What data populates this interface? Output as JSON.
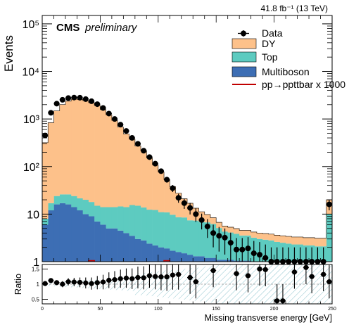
{
  "lumi_label": "41.8 fb⁻¹ (13 TeV)",
  "experiment": "CMS",
  "status": "preliminary",
  "chart_data": [
    {
      "type": "bar",
      "stacked": true,
      "histogram": true,
      "log_y": true,
      "ylabel": "Events",
      "xlim": [
        0,
        250
      ],
      "ylim": [
        1,
        150000
      ],
      "y_tick_labels": [
        "1",
        "10",
        "10²",
        "10³",
        "10⁴",
        "10⁵"
      ],
      "legend_position": "top-right",
      "bin_width": 5,
      "bin_low_edges": [
        0,
        5,
        10,
        15,
        20,
        25,
        30,
        35,
        40,
        45,
        50,
        55,
        60,
        65,
        70,
        75,
        80,
        85,
        90,
        95,
        100,
        105,
        110,
        115,
        120,
        125,
        130,
        135,
        140,
        145,
        150,
        155,
        160,
        165,
        170,
        175,
        180,
        185,
        190,
        195,
        200,
        205,
        210,
        215,
        220,
        225,
        230,
        235,
        240,
        245
      ],
      "series": [
        {
          "name": "Multiboson",
          "color": "#3d6eb4",
          "values": [
            6,
            12,
            16,
            17,
            16,
            14,
            12,
            10,
            9,
            7,
            6,
            5,
            5,
            4.5,
            4,
            3.5,
            3,
            2.8,
            2.4,
            2.2,
            2,
            1.9,
            1.7,
            1.6,
            1.5,
            1.4,
            1.3,
            1.3,
            1.2,
            1.2,
            1.1,
            1.1,
            1.1,
            1.05,
            1.05,
            1.05,
            1,
            1,
            1,
            1,
            1,
            1,
            1,
            1,
            1,
            1,
            1,
            1,
            1,
            1
          ]
        },
        {
          "name": "Top",
          "color": "#5dcbc0",
          "values": [
            2,
            5,
            8,
            9,
            10,
            10,
            9.5,
            10,
            9,
            8,
            8,
            9,
            9,
            10,
            10,
            12,
            12,
            11,
            10,
            10,
            9,
            9,
            8,
            7,
            7,
            6,
            6,
            5.5,
            5.5,
            5,
            4,
            3.2,
            3,
            2.8,
            2.5,
            2.5,
            2.2,
            2,
            1.9,
            1.8,
            1.6,
            1.5,
            1.4,
            1.3,
            1.3,
            1.2,
            1.2,
            1.1,
            1.1,
            9
          ]
        },
        {
          "name": "DY",
          "color": "#fdc18a",
          "values": [
            310,
            820,
            1460,
            1980,
            2350,
            2580,
            2560,
            2400,
            2190,
            1900,
            1560,
            1210,
            920,
            660,
            470,
            360,
            255,
            200,
            140,
            96,
            66,
            42,
            28,
            19,
            12.5,
            9.5,
            6,
            4.4,
            3.1,
            2.2,
            1.6,
            1.3,
            1.2,
            1.1,
            1,
            1,
            1,
            1,
            1,
            1,
            1,
            1,
            1,
            1,
            1,
            1,
            1,
            1,
            1,
            10
          ]
        }
      ],
      "data_series": {
        "name": "Data",
        "values": [
          450,
          1350,
          2100,
          2530,
          2750,
          2820,
          2800,
          2620,
          2360,
          2050,
          1700,
          1300,
          1000,
          760,
          560,
          400,
          300,
          215,
          158,
          115,
          80,
          53,
          35,
          22,
          17,
          13.5,
          10,
          7.5,
          5.5,
          4,
          3.5,
          3.2,
          2.5,
          1.8,
          1.8,
          1.9,
          1.5,
          1.4,
          1.2,
          1,
          1,
          1,
          1,
          1,
          1,
          1,
          1,
          1,
          1,
          16
        ]
      },
      "signal_series": {
        "name": "pp→ppttbar x 1000",
        "color": "#c00000",
        "x": [
          42.5,
          107.5
        ],
        "values": [
          1.05,
          1.05
        ]
      }
    },
    {
      "type": "scatter",
      "ylabel": "Ratio",
      "xlabel": "Missing transverse energy [GeV]",
      "xlim": [
        0,
        250
      ],
      "ylim": [
        0.35,
        1.65
      ],
      "x_tick_labels": [
        "0",
        "50",
        "100",
        "150",
        "200",
        "250"
      ],
      "y_tick_labels": [
        "0.5",
        "1",
        "1.5"
      ],
      "x": [
        2.5,
        7.5,
        12.5,
        17.5,
        22.5,
        27.5,
        32.5,
        37.5,
        42.5,
        47.5,
        52.5,
        57.5,
        62.5,
        67.5,
        72.5,
        77.5,
        82.5,
        87.5,
        92.5,
        97.5,
        102.5,
        107.5,
        112.5,
        117.5,
        127.5,
        132.5,
        147.5,
        167.5,
        177.5,
        187.5,
        192.5,
        202.5,
        207.5,
        217.5,
        227.5,
        232.5,
        242.5,
        247.5
      ],
      "values": [
        1.02,
        1.12,
        1.05,
        1.0,
        1.08,
        1.07,
        1.06,
        1.04,
        1.02,
        1.05,
        1.07,
        1.13,
        1.15,
        1.18,
        1.2,
        1.18,
        1.22,
        1.21,
        1.28,
        1.25,
        1.24,
        1.24,
        1.3,
        1.32,
        1.22,
        1.08,
        1.45,
        1.35,
        1.28,
        1.5,
        1.48,
        0.45,
        0.45,
        1.4,
        1.55,
        1.25,
        1.32,
        1.08
      ]
    }
  ]
}
